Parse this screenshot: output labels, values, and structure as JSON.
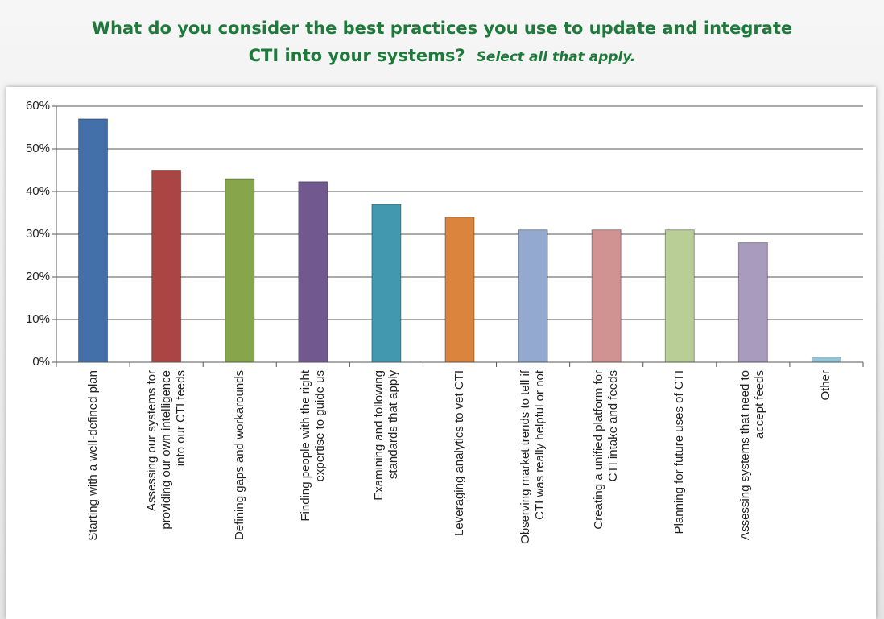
{
  "chart_data": {
    "type": "bar",
    "title": "What do you consider the best practices you use to update and integrate CTI into your systems?",
    "subtitle": "Select all that apply.",
    "categories": [
      "Starting with a well-defined plan",
      "Assessing our systems for\nproviding our own intelligence\ninto our CTI feeds",
      "Defining gaps and workarounds",
      "Finding people with the right\nexpertise to guide us",
      "Examining and following\nstandards that apply",
      "Leveraging analytics to vet CTI",
      "Observing market trends to tell if\nCTI was really helpful or not",
      "Creating a unified platform for\nCTI intake and feeds",
      "Planning for future uses of CTI",
      "Assessing systems that need to\naccept feeds",
      "Other"
    ],
    "values": [
      57,
      45,
      43,
      42.3,
      37,
      34,
      31,
      31,
      31,
      28,
      1.2
    ],
    "colors": [
      "#4370a8",
      "#aa4543",
      "#87a54b",
      "#71588f",
      "#4198af",
      "#db843d",
      "#93a9cf",
      "#d19392",
      "#b9cd96",
      "#a99bbd",
      "#92c5d5"
    ],
    "ylim": [
      0,
      60
    ],
    "yticks": [
      {
        "value": 0,
        "label": "0%"
      },
      {
        "value": 10,
        "label": "10%"
      },
      {
        "value": 20,
        "label": "20%"
      },
      {
        "value": 30,
        "label": "30%"
      },
      {
        "value": 40,
        "label": "40%"
      },
      {
        "value": 50,
        "label": "50%"
      },
      {
        "value": 60,
        "label": "60%"
      }
    ],
    "grid": true
  }
}
